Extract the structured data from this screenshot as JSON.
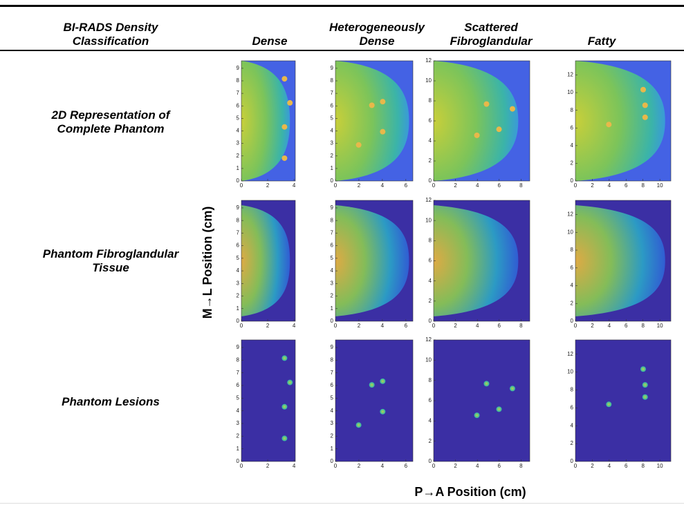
{
  "header": {
    "row_label": "BI-RADS Density Classification",
    "columns": [
      "Dense",
      "Heterogeneously Dense",
      "Scattered Fibroglandular",
      "Fatty"
    ]
  },
  "rows": [
    "2D Representation of Complete Phantom",
    "Phantom Fibroglandular Tissue",
    "Phantom Lesions"
  ],
  "axes": {
    "y_label": "M→L Position (cm)",
    "x_label": "P→A Position (cm)"
  },
  "panels": [
    {
      "xlim": [
        0,
        4.1
      ],
      "ylim": [
        0,
        9.6
      ],
      "xticks": [
        0,
        2,
        4
      ],
      "yticks": [
        0,
        1,
        2,
        3,
        4,
        5,
        6,
        7,
        8,
        9
      ]
    },
    {
      "xlim": [
        0,
        6.6
      ],
      "ylim": [
        0,
        9.6
      ],
      "xticks": [
        0,
        2,
        4,
        6
      ],
      "yticks": [
        0,
        1,
        2,
        3,
        4,
        5,
        6,
        7,
        8,
        9
      ]
    },
    {
      "xlim": [
        0,
        8.8
      ],
      "ylim": [
        0,
        12
      ],
      "xticks": [
        0,
        2,
        4,
        6,
        8
      ],
      "yticks": [
        0,
        2,
        4,
        6,
        8,
        10,
        12
      ]
    },
    {
      "xlim": [
        0,
        11.3
      ],
      "ylim": [
        0,
        13.6
      ],
      "xticks": [
        0,
        2,
        4,
        6,
        8,
        10
      ],
      "yticks": [
        0,
        2,
        4,
        6,
        8,
        10,
        12
      ]
    }
  ]
}
